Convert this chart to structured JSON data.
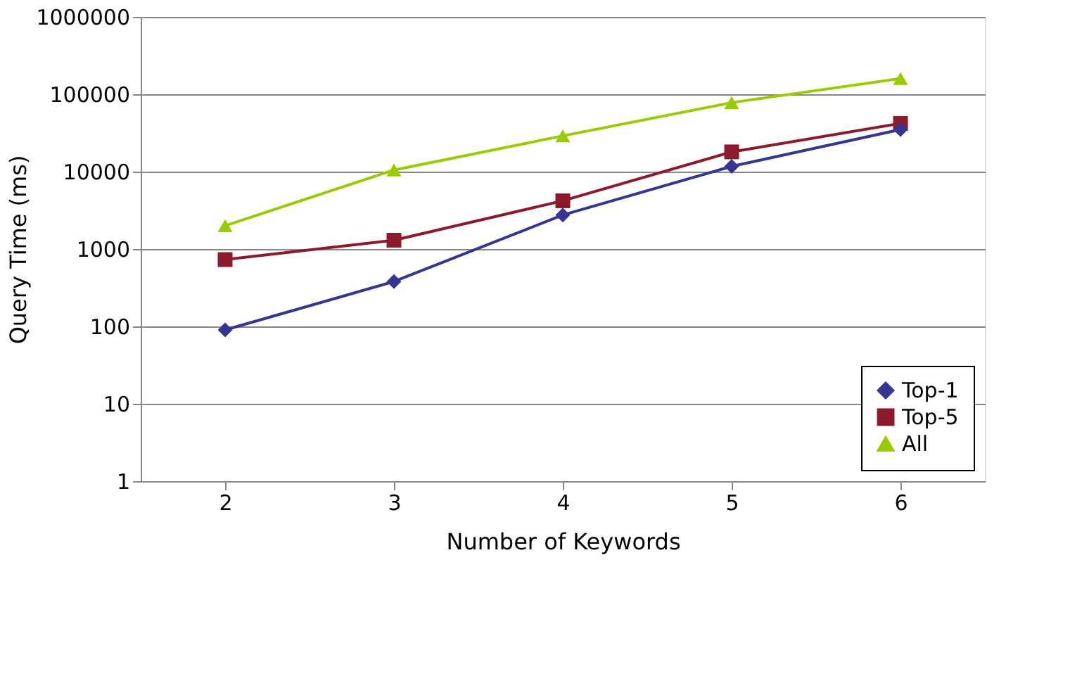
{
  "chart_data": {
    "type": "line",
    "xlabel": "Number of Keywords",
    "ylabel": "Query Time (ms)",
    "categories": [
      "2",
      "3",
      "4",
      "5",
      "6"
    ],
    "series": [
      {
        "name": "Top-1",
        "color": "#353594",
        "marker": "diamond",
        "values": [
          90,
          380,
          2750,
          11700,
          35000
        ]
      },
      {
        "name": "Top-5",
        "color": "#8b1a2a",
        "marker": "square",
        "values": [
          730,
          1300,
          4200,
          18000,
          42000
        ]
      },
      {
        "name": "All",
        "color": "#99cc00",
        "marker": "triangle",
        "values": [
          2000,
          10500,
          29000,
          78000,
          160000
        ]
      }
    ],
    "log": "y",
    "ylim": [
      1,
      1000000
    ],
    "yticks": [
      1,
      10,
      100,
      1000,
      10000,
      100000,
      1000000
    ],
    "grid": "y",
    "legend": "bottom right"
  }
}
